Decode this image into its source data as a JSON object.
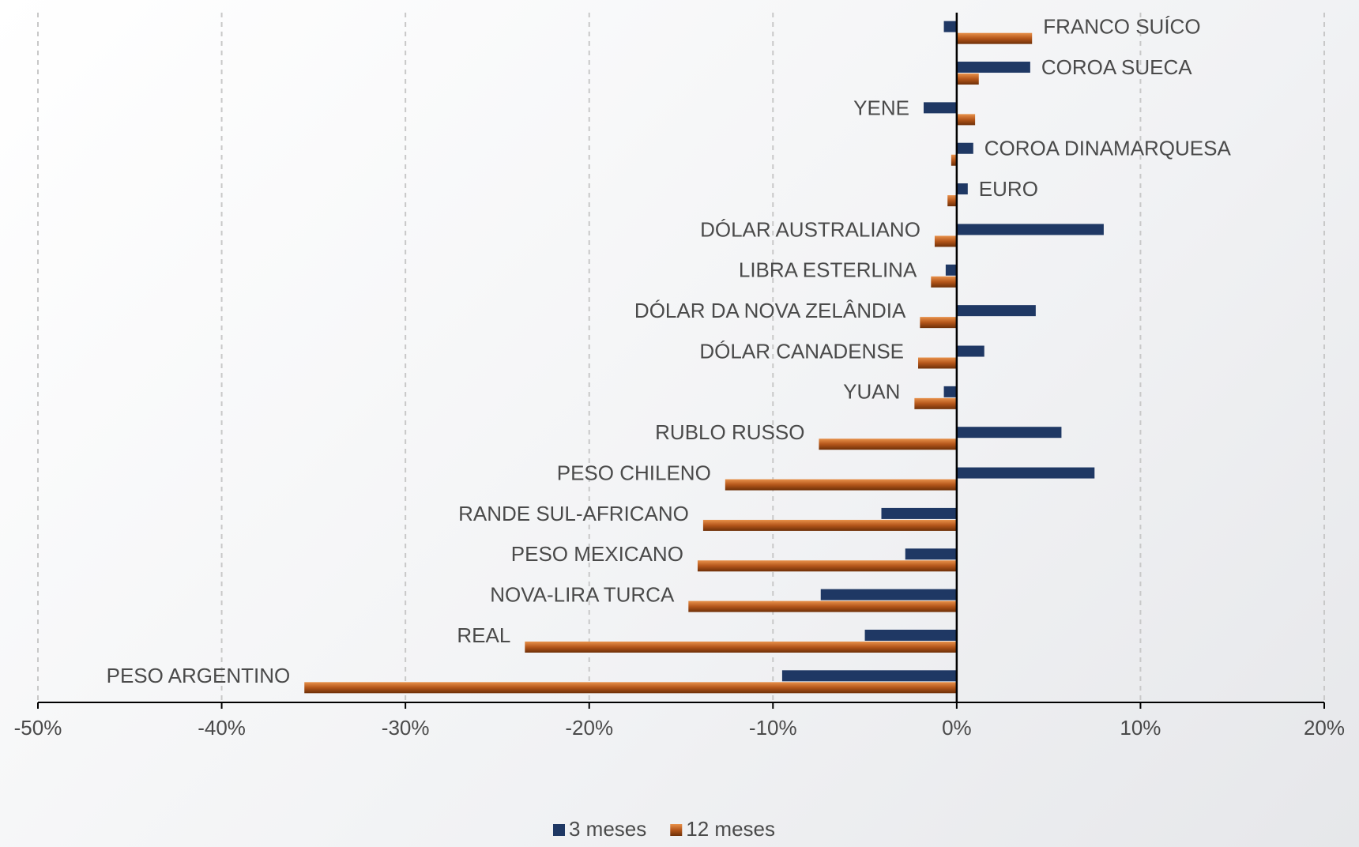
{
  "chart_data": {
    "type": "hbar",
    "categories": [
      "FRANCO SUÍCO",
      "COROA SUECA",
      "YENE",
      "COROA DINAMARQUESA",
      "EURO",
      "DÓLAR AUSTRALIANO",
      "LIBRA ESTERLINA",
      "DÓLAR DA NOVA ZELÂNDIA",
      "DÓLAR CANADENSE",
      "YUAN",
      "RUBLO RUSSO",
      "PESO CHILENO",
      "RANDE SUL-AFRICANO",
      "PESO MEXICANO",
      "NOVA-LIRA TURCA",
      "REAL",
      "PESO ARGENTINO"
    ],
    "series": [
      {
        "name": "3 meses",
        "color": "#1f3864",
        "values": [
          -0.7,
          4.0,
          -1.8,
          0.9,
          0.6,
          8.0,
          -0.6,
          4.3,
          1.5,
          -0.7,
          5.7,
          7.5,
          -4.1,
          -2.8,
          -7.4,
          -5.0,
          -9.5
        ]
      },
      {
        "name": "12 meses",
        "color": "#c0601a",
        "values": [
          4.1,
          1.2,
          1.0,
          -0.3,
          -0.5,
          -1.2,
          -1.4,
          -2.0,
          -2.1,
          -2.3,
          -7.5,
          -12.6,
          -13.8,
          -14.1,
          -14.6,
          -23.5,
          -35.5
        ]
      }
    ],
    "xlim": [
      -50,
      20
    ],
    "xticks": [
      {
        "value": -50,
        "label": "-50%"
      },
      {
        "value": -40,
        "label": "-40%"
      },
      {
        "value": -30,
        "label": "-30%"
      },
      {
        "value": -20,
        "label": "-20%"
      },
      {
        "value": -10,
        "label": "-10%"
      },
      {
        "value": 0,
        "label": "0%"
      },
      {
        "value": 10,
        "label": "10%"
      },
      {
        "value": 20,
        "label": "20%"
      }
    ],
    "grid": true,
    "legend": "bottom"
  }
}
